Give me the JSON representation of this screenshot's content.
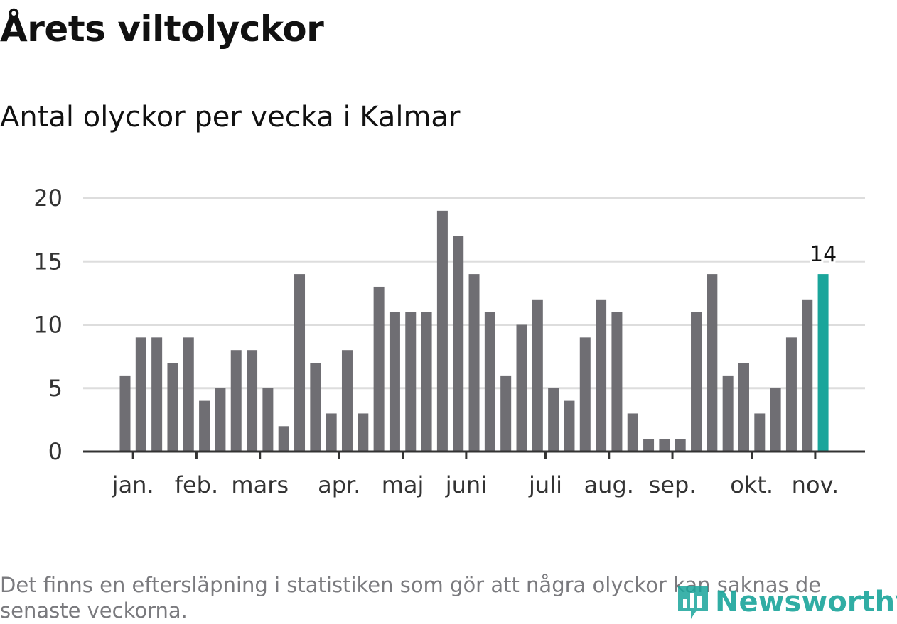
{
  "header": {
    "title": "Årets viltolyckor",
    "subtitle": "Antal olyckor per vecka i Kalmar"
  },
  "footer": {
    "note": "Det finns en eftersläpning i statistiken som gör att några olyckor kan saknas de senaste veckorna.",
    "brand": "Newsworthy"
  },
  "colors": {
    "bar": "#6f6e73",
    "highlight": "#1aa59b",
    "grid": "#dddddd",
    "axis": "#333333",
    "text": "#333333"
  },
  "chart_data": {
    "type": "bar",
    "title": "Årets viltolyckor",
    "subtitle": "Antal olyckor per vecka i Kalmar",
    "xlabel": "",
    "ylabel": "",
    "ylim": [
      0,
      20
    ],
    "yticks": [
      0,
      5,
      10,
      15,
      20
    ],
    "grid": true,
    "values": [
      6,
      9,
      9,
      7,
      9,
      4,
      5,
      8,
      8,
      5,
      2,
      14,
      7,
      3,
      8,
      3,
      13,
      11,
      11,
      11,
      19,
      17,
      14,
      11,
      6,
      10,
      12,
      5,
      4,
      9,
      12,
      11,
      3,
      1,
      1,
      1,
      11,
      14,
      6,
      7,
      3,
      5,
      9,
      12,
      14
    ],
    "highlight_index": 44,
    "highlight_label": "14",
    "month_ticks": [
      {
        "label": "jan.",
        "week_index": 0.5
      },
      {
        "label": "feb.",
        "week_index": 4.5
      },
      {
        "label": "mars",
        "week_index": 8.5
      },
      {
        "label": "apr.",
        "week_index": 13.5
      },
      {
        "label": "maj",
        "week_index": 17.5
      },
      {
        "label": "juni",
        "week_index": 21.5
      },
      {
        "label": "juli",
        "week_index": 26.5
      },
      {
        "label": "aug.",
        "week_index": 30.5
      },
      {
        "label": "sep.",
        "week_index": 34.5
      },
      {
        "label": "okt.",
        "week_index": 39.5
      },
      {
        "label": "nov.",
        "week_index": 43.5
      }
    ]
  }
}
